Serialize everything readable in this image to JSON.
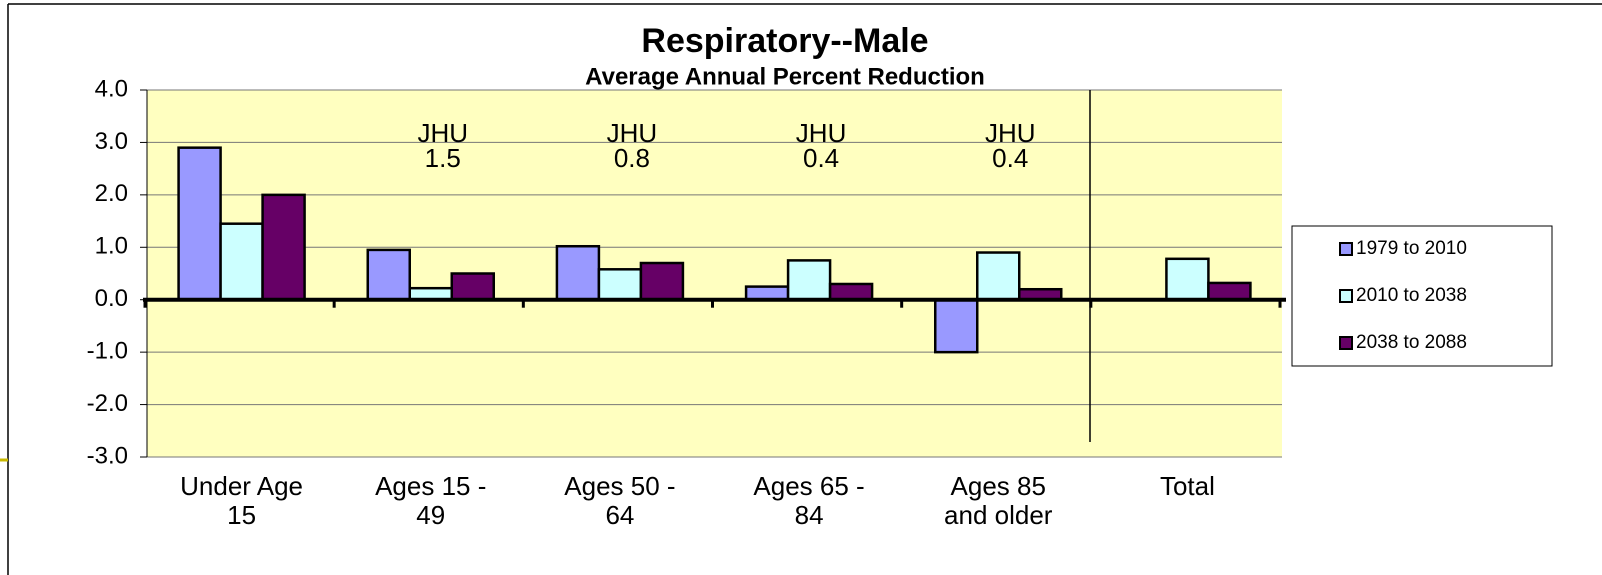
{
  "chart_data": {
    "type": "bar",
    "title": "Respiratory--Male",
    "subtitle": "Average Annual Percent Reduction",
    "categories": [
      "Under Age\n15",
      "Ages 15 -\n49",
      "Ages 50 -\n64",
      "Ages 65 -\n84",
      "Ages 85\nand older",
      "Total"
    ],
    "series": [
      {
        "name": "1979 to 2010",
        "color": "#9999ff",
        "values": [
          2.9,
          0.95,
          1.02,
          0.25,
          -1.0,
          null
        ]
      },
      {
        "name": "2010 to 2038",
        "color": "#ccffff",
        "values": [
          1.45,
          0.22,
          0.58,
          0.75,
          0.9,
          0.78
        ]
      },
      {
        "name": "2038 to 2088",
        "color": "#660066",
        "values": [
          2.0,
          0.5,
          0.7,
          0.3,
          0.2,
          0.32
        ]
      }
    ],
    "annotations": [
      {
        "label": "JHU",
        "value": 1.5,
        "category": "Ages 15 -\n49"
      },
      {
        "label": "JHU",
        "value": 0.8,
        "category": "Ages 50 -\n64"
      },
      {
        "label": "JHU",
        "value": 0.4,
        "category": "Ages 65 -\n84"
      },
      {
        "label": "JHU",
        "value": 0.4,
        "category": "Ages 85\nand older"
      }
    ],
    "ylim": [
      -3,
      4
    ],
    "yticks": [
      {
        "value": -3,
        "label": "-3.0"
      },
      {
        "value": -2,
        "label": "-2.0"
      },
      {
        "value": -1,
        "label": "-1.0"
      },
      {
        "value": 0,
        "label": "0.0"
      },
      {
        "value": 1,
        "label": "1.0"
      },
      {
        "value": 2,
        "label": "2.0"
      },
      {
        "value": 3,
        "label": "3.0"
      },
      {
        "value": 4,
        "label": "4.0"
      }
    ],
    "grid": true,
    "legend": "right",
    "plot_background": "#ffffc0"
  }
}
